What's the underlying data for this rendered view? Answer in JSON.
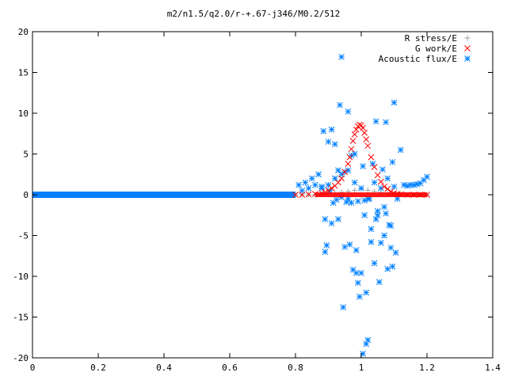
{
  "chart_data": {
    "type": "scatter",
    "title": "m2/n1.5/q2.0/r-+.67-j346/M0.2/512",
    "xlabel": "",
    "ylabel": "",
    "xlim": [
      0,
      1.4
    ],
    "ylim": [
      -20,
      20
    ],
    "x_ticks": [
      0,
      0.2,
      0.4,
      0.6,
      0.8,
      1,
      1.2,
      1.4
    ],
    "x_tick_labels": [
      "0",
      "0.2",
      "0.4",
      "0.6",
      "0.8",
      "1",
      "1.2",
      "1.4"
    ],
    "y_ticks": [
      -20,
      -15,
      -10,
      -5,
      0,
      5,
      10,
      15,
      20
    ],
    "y_tick_labels": [
      "-20",
      "-15",
      "-10",
      "-5",
      "0",
      "5",
      "10",
      "15",
      "20"
    ],
    "grid": false,
    "legend_position": "top-right",
    "series": [
      {
        "name": "R stress/E",
        "marker": "plus",
        "color": "#a0a0a0",
        "x": [
          0.8,
          0.82,
          0.84,
          0.86,
          0.88,
          0.9,
          0.92,
          0.94,
          0.96,
          0.98,
          1.0,
          1.02,
          1.04,
          1.06,
          1.08,
          1.1,
          1.12,
          1.14,
          1.16,
          1.18,
          1.2
        ],
        "y": [
          0,
          0,
          0,
          0,
          0.05,
          0.1,
          0.2,
          0.3,
          0.4,
          0.55,
          0.7,
          0.55,
          0.4,
          0.3,
          0.2,
          0.1,
          0.05,
          0,
          0,
          0,
          0
        ]
      },
      {
        "name": "G work/E",
        "marker": "cross",
        "color": "#ff0000",
        "x": [
          0.8,
          0.82,
          0.84,
          0.86,
          0.88,
          0.89,
          0.9,
          0.91,
          0.92,
          0.93,
          0.94,
          0.95,
          0.96,
          0.965,
          0.97,
          0.975,
          0.98,
          0.985,
          0.99,
          0.995,
          1.0,
          1.005,
          1.01,
          1.015,
          1.02,
          1.03,
          1.04,
          1.05,
          1.06,
          1.07,
          1.08,
          1.09,
          1.1,
          1.11,
          1.12,
          1.14,
          1.16,
          1.18,
          1.2
        ],
        "y": [
          0,
          0,
          0.05,
          0.1,
          0.2,
          0.3,
          0.5,
          0.8,
          1.1,
          1.5,
          2.0,
          2.8,
          3.8,
          4.6,
          5.6,
          6.6,
          7.4,
          8.0,
          8.4,
          8.6,
          8.5,
          8.2,
          7.6,
          6.8,
          6.0,
          4.6,
          3.4,
          2.4,
          1.6,
          1.0,
          0.7,
          0.4,
          0.2,
          0.1,
          0.05,
          0,
          0,
          0,
          0
        ]
      },
      {
        "name": "Acoustic flux/E",
        "marker": "star",
        "color": "#0080ff",
        "x": [
          0.81,
          0.82,
          0.83,
          0.84,
          0.85,
          0.86,
          0.87,
          0.88,
          0.885,
          0.89,
          0.895,
          0.9,
          0.905,
          0.91,
          0.915,
          0.92,
          0.925,
          0.93,
          0.935,
          0.94,
          0.945,
          0.95,
          0.955,
          0.96,
          0.965,
          0.97,
          0.975,
          0.98,
          0.985,
          0.99,
          0.995,
          1.0,
          1.005,
          1.01,
          1.015,
          1.02,
          1.025,
          1.03,
          1.035,
          1.04,
          1.045,
          1.05,
          1.055,
          1.06,
          1.065,
          1.07,
          1.075,
          1.08,
          1.085,
          1.09,
          1.095,
          1.1,
          1.105,
          1.11,
          1.12,
          1.13,
          1.14,
          1.15,
          1.16,
          1.17,
          1.18,
          1.19,
          1.2,
          0.88,
          0.9,
          0.92,
          0.94,
          0.96,
          0.98,
          1.0,
          1.02,
          1.04,
          1.06,
          1.08,
          1.1,
          0.89,
          0.91,
          0.93,
          0.95,
          0.97,
          0.99,
          1.01,
          1.03,
          1.05,
          1.07,
          1.09,
          0.94,
          0.96,
          0.985,
          1.005,
          1.015,
          1.045,
          1.075,
          1.095
        ],
        "y": [
          1.2,
          0.5,
          1.5,
          0.8,
          2.0,
          1.2,
          2.5,
          1.0,
          7.8,
          -3.0,
          -6.2,
          6.5,
          0.5,
          8.0,
          -1.0,
          6.2,
          -0.6,
          3.0,
          11.0,
          16.9,
          -13.8,
          2.8,
          -0.9,
          10.2,
          -6.1,
          4.8,
          -9.2,
          5.0,
          -9.6,
          -0.8,
          -12.5,
          -9.6,
          3.5,
          -0.7,
          -18.3,
          -17.8,
          -0.5,
          -5.8,
          3.8,
          -8.4,
          -3.0,
          -2.5,
          -10.7,
          -5.9,
          3.1,
          -5.0,
          8.9,
          -9.1,
          -3.7,
          -6.5,
          -8.8,
          11.3,
          -7.1,
          -0.5,
          5.5,
          1.2,
          1.1,
          1.2,
          1.2,
          1.3,
          1.4,
          1.8,
          2.2,
          0.8,
          1.2,
          2.0,
          2.5,
          -0.5,
          1.5,
          0.8,
          -0.5,
          1.5,
          0.8,
          2.0,
          1.0,
          -7.0,
          -3.5,
          -3.0,
          -6.4,
          -1.0,
          -10.8,
          -2.5,
          -4.2,
          -2.0,
          -1.5,
          -3.8,
          -0.3,
          3.0,
          -6.8,
          -19.5,
          -12.0,
          9.0,
          -2.3,
          4.0
        ]
      }
    ]
  }
}
